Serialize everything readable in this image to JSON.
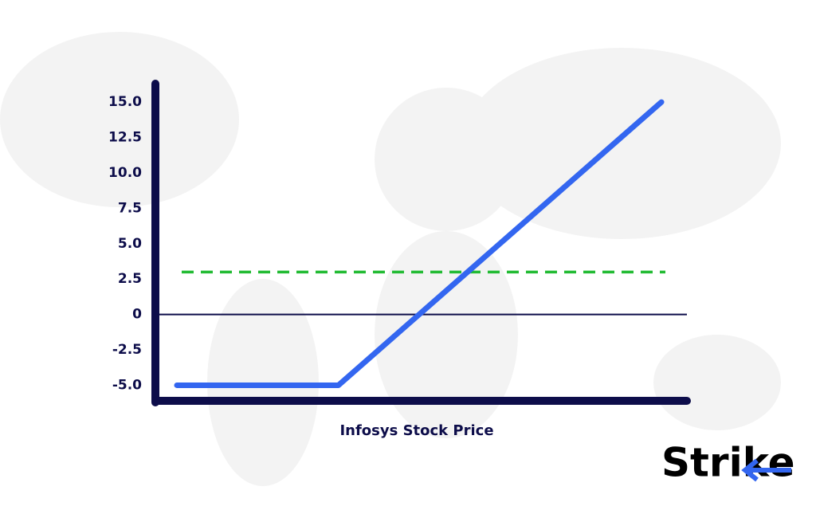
{
  "chart_data": {
    "type": "line",
    "xlabel": "Infosys Stock Price",
    "categories": [
      null,
      null,
      null,
      null
    ],
    "series": [
      {
        "color": "#3366f0",
        "values": [
          -5,
          -5,
          5,
          15
        ]
      }
    ],
    "ylim": [
      -6.1,
      16.3
    ],
    "yticks": [
      {
        "value": -5,
        "label": "-5.0"
      },
      -2.5,
      0,
      2.5,
      {
        "value": 5,
        "label": "5.0"
      },
      7.5,
      {
        "value": 10,
        "label": "10.0"
      },
      12.5,
      {
        "value": 15,
        "label": "15.0"
      }
    ],
    "hline": 3,
    "hline_color": "#22bb33"
  },
  "logo": "Strike"
}
